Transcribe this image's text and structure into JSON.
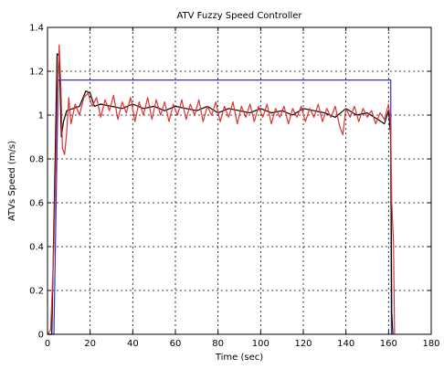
{
  "chart_data": {
    "type": "line",
    "title": "ATV Fuzzy Speed Controller",
    "xlabel": "Time (sec)",
    "ylabel": "ATVs Speed (m/s)",
    "xlim": [
      0,
      180
    ],
    "ylim": [
      0,
      1.4
    ],
    "xticks": [
      0,
      20,
      40,
      60,
      80,
      100,
      120,
      140,
      160,
      180
    ],
    "yticks": [
      0,
      0.2,
      0.4,
      0.6,
      0.8,
      1,
      1.2,
      1.4
    ],
    "grid": true,
    "legend": null,
    "series": [
      {
        "color": "#3333cc",
        "points": [
          [
            0,
            0
          ],
          [
            3,
            0
          ],
          [
            5,
            1.16
          ],
          [
            161,
            1.16
          ],
          [
            161.3,
            0
          ]
        ]
      },
      {
        "color": "#000000",
        "points": [
          [
            0,
            0
          ],
          [
            2,
            0
          ],
          [
            3,
            0.5
          ],
          [
            4.5,
            1.28
          ],
          [
            5.5,
            1.27
          ],
          [
            6.5,
            0.9
          ],
          [
            7.5,
            0.97
          ],
          [
            9,
            1.02
          ],
          [
            12,
            1.03
          ],
          [
            15,
            1.04
          ],
          [
            18,
            1.11
          ],
          [
            20,
            1.1
          ],
          [
            22,
            1.04
          ],
          [
            25,
            1.05
          ],
          [
            30,
            1.04
          ],
          [
            35,
            1.03
          ],
          [
            40,
            1.05
          ],
          [
            45,
            1.03
          ],
          [
            50,
            1.04
          ],
          [
            55,
            1.02
          ],
          [
            60,
            1.04
          ],
          [
            65,
            1.03
          ],
          [
            70,
            1.02
          ],
          [
            75,
            1.04
          ],
          [
            80,
            1.01
          ],
          [
            85,
            1.03
          ],
          [
            90,
            1.02
          ],
          [
            95,
            1.01
          ],
          [
            100,
            1.03
          ],
          [
            105,
            1.01
          ],
          [
            110,
            1.02
          ],
          [
            115,
            1.0
          ],
          [
            120,
            1.03
          ],
          [
            125,
            1.02
          ],
          [
            130,
            1.01
          ],
          [
            135,
            0.99
          ],
          [
            140,
            1.03
          ],
          [
            145,
            1.0
          ],
          [
            150,
            1.01
          ],
          [
            155,
            0.98
          ],
          [
            158,
            0.96
          ],
          [
            160,
            1.02
          ],
          [
            161,
            0.9
          ],
          [
            161.5,
            0.1
          ],
          [
            162,
            0
          ]
        ]
      },
      {
        "color": "#dd3333",
        "points": [
          [
            0,
            0
          ],
          [
            1.5,
            0.02
          ],
          [
            3,
            0.4
          ],
          [
            4.5,
            1.05
          ],
          [
            5.5,
            1.32
          ],
          [
            6.3,
            1.12
          ],
          [
            7,
            0.85
          ],
          [
            8,
            0.82
          ],
          [
            9,
            0.92
          ],
          [
            10,
            1.08
          ],
          [
            11,
            0.96
          ],
          [
            13,
            1.05
          ],
          [
            15,
            1.0
          ],
          [
            17,
            1.08
          ],
          [
            19,
            1.1
          ],
          [
            21,
            1.04
          ],
          [
            23,
            1.08
          ],
          [
            25,
            0.99
          ],
          [
            27,
            1.07
          ],
          [
            29,
            1.02
          ],
          [
            31,
            1.09
          ],
          [
            33,
            0.98
          ],
          [
            35,
            1.06
          ],
          [
            37,
            1.01
          ],
          [
            39,
            1.08
          ],
          [
            41,
            0.97
          ],
          [
            43,
            1.06
          ],
          [
            45,
            1.0
          ],
          [
            47,
            1.08
          ],
          [
            49,
            0.98
          ],
          [
            51,
            1.07
          ],
          [
            53,
            1.0
          ],
          [
            55,
            1.06
          ],
          [
            57,
            0.97
          ],
          [
            59,
            1.05
          ],
          [
            61,
            1.0
          ],
          [
            63,
            1.07
          ],
          [
            65,
            0.98
          ],
          [
            67,
            1.05
          ],
          [
            69,
            1.0
          ],
          [
            71,
            1.07
          ],
          [
            73,
            0.97
          ],
          [
            75,
            1.04
          ],
          [
            77,
            1.0
          ],
          [
            79,
            1.06
          ],
          [
            81,
            0.97
          ],
          [
            83,
            1.04
          ],
          [
            85,
            0.99
          ],
          [
            87,
            1.06
          ],
          [
            89,
            0.96
          ],
          [
            91,
            1.04
          ],
          [
            93,
            0.99
          ],
          [
            95,
            1.05
          ],
          [
            97,
            0.97
          ],
          [
            99,
            1.04
          ],
          [
            101,
            0.99
          ],
          [
            103,
            1.05
          ],
          [
            105,
            0.96
          ],
          [
            107,
            1.03
          ],
          [
            109,
            0.99
          ],
          [
            111,
            1.04
          ],
          [
            113,
            0.96
          ],
          [
            115,
            1.03
          ],
          [
            117,
            0.99
          ],
          [
            119,
            1.04
          ],
          [
            121,
            0.97
          ],
          [
            123,
            1.03
          ],
          [
            125,
            0.99
          ],
          [
            127,
            1.05
          ],
          [
            129,
            0.97
          ],
          [
            131,
            1.03
          ],
          [
            133,
            0.99
          ],
          [
            135,
            1.04
          ],
          [
            137,
            0.95
          ],
          [
            138.5,
            0.91
          ],
          [
            140,
            1.03
          ],
          [
            142,
            0.99
          ],
          [
            144,
            1.04
          ],
          [
            146,
            0.97
          ],
          [
            148,
            1.03
          ],
          [
            150,
            0.99
          ],
          [
            152,
            1.02
          ],
          [
            154,
            0.96
          ],
          [
            156,
            1.01
          ],
          [
            158,
            0.98
          ],
          [
            160,
            1.05
          ],
          [
            161,
            0.95
          ],
          [
            161.5,
            0.6
          ],
          [
            162.3,
            0.42
          ],
          [
            162.8,
            0.0
          ]
        ]
      }
    ]
  }
}
